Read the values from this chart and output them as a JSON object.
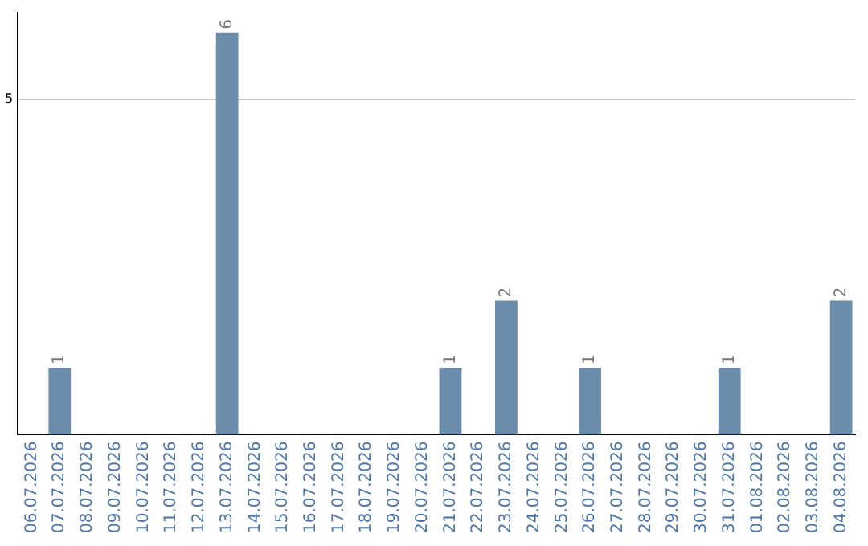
{
  "chart_data": {
    "type": "bar",
    "categories": [
      "06.07.2026",
      "07.07.2026",
      "08.07.2026",
      "09.07.2026",
      "10.07.2026",
      "11.07.2026",
      "12.07.2026",
      "13.07.2026",
      "14.07.2026",
      "15.07.2026",
      "16.07.2026",
      "17.07.2026",
      "18.07.2026",
      "19.07.2026",
      "20.07.2026",
      "21.07.2026",
      "22.07.2026",
      "23.07.2026",
      "24.07.2026",
      "25.07.2026",
      "26.07.2026",
      "27.07.2026",
      "28.07.2026",
      "29.07.2026",
      "30.07.2026",
      "31.07.2026",
      "01.08.2026",
      "02.08.2026",
      "03.08.2026",
      "04.08.2026"
    ],
    "values": [
      0,
      1,
      0,
      0,
      0,
      0,
      0,
      6,
      0,
      0,
      0,
      0,
      0,
      0,
      0,
      1,
      0,
      2,
      0,
      0,
      1,
      0,
      0,
      0,
      0,
      1,
      0,
      0,
      0,
      2
    ],
    "value_labels": [
      null,
      "1",
      null,
      null,
      null,
      null,
      null,
      "6",
      null,
      null,
      null,
      null,
      null,
      null,
      null,
      "1",
      null,
      "2",
      null,
      null,
      "1",
      null,
      null,
      null,
      null,
      "1",
      null,
      null,
      null,
      "2"
    ],
    "color": "#6b8cab",
    "ylim": [
      0,
      6.3
    ],
    "yticks": [
      5
    ],
    "grid": "y",
    "legend": false
  }
}
